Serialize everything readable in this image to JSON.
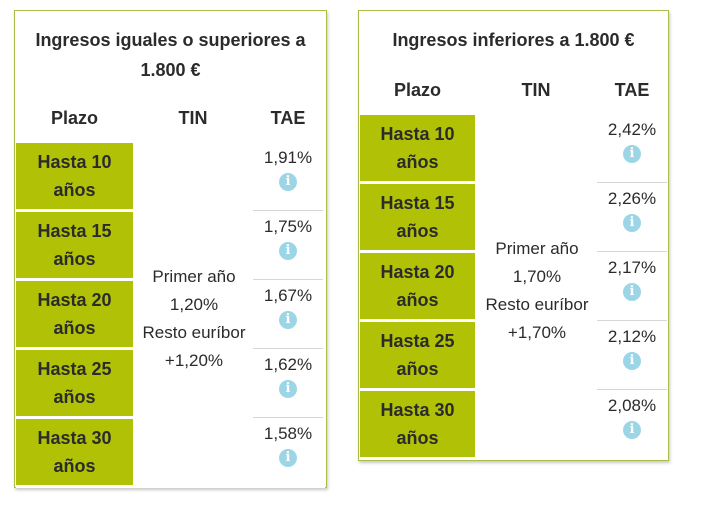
{
  "left": {
    "title": "Ingresos iguales o superiores a 1.800 €",
    "headers": {
      "plazo": "Plazo",
      "tin": "TIN",
      "tae": "TAE"
    },
    "tin_lines": [
      "Primer año",
      "1,20%",
      "Resto euríbor",
      "+1,20%"
    ],
    "rows": [
      {
        "plazo_line1": "Hasta 10",
        "plazo_line2": "años",
        "tae": "1,91%",
        "icon": "info-icon"
      },
      {
        "plazo_line1": "Hasta 15",
        "plazo_line2": "años",
        "tae": "1,75%",
        "icon": "info-icon"
      },
      {
        "plazo_line1": "Hasta 20",
        "plazo_line2": "años",
        "tae": "1,67%",
        "icon": "info-icon"
      },
      {
        "plazo_line1": "Hasta 25",
        "plazo_line2": "años",
        "tae": "1,62%",
        "icon": "info-icon"
      },
      {
        "plazo_line1": "Hasta 30",
        "plazo_line2": "años",
        "tae": "1,58%",
        "icon": "info-icon"
      }
    ]
  },
  "right": {
    "title": "Ingresos inferiores a 1.800 €",
    "headers": {
      "plazo": "Plazo",
      "tin": "TIN",
      "tae": "TAE"
    },
    "tin_lines": [
      "Primer año",
      "1,70%",
      "Resto euríbor",
      "+1,70%"
    ],
    "rows": [
      {
        "plazo_line1": "Hasta 10",
        "plazo_line2": "años",
        "tae": "2,42%",
        "icon": "info-icon"
      },
      {
        "plazo_line1": "Hasta 15",
        "plazo_line2": "años",
        "tae": "2,26%",
        "icon": "info-icon"
      },
      {
        "plazo_line1": "Hasta 20",
        "plazo_line2": "años",
        "tae": "2,17%",
        "icon": "info-icon"
      },
      {
        "plazo_line1": "Hasta 25",
        "plazo_line2": "años",
        "tae": "2,12%",
        "icon": "info-icon"
      },
      {
        "plazo_line1": "Hasta 30",
        "plazo_line2": "años",
        "tae": "2,08%",
        "icon": "info-icon"
      }
    ]
  },
  "colors": {
    "accent_green": "#b1c206",
    "border_green": "#a8c04a",
    "info_blue": "#9cd6e6",
    "text": "#2b2b2b"
  },
  "info_glyph": "i"
}
